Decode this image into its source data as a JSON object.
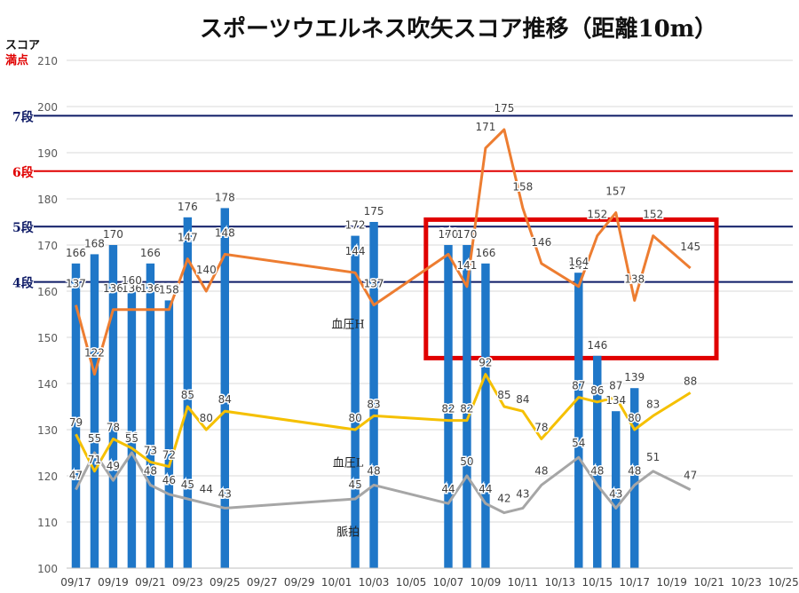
{
  "title": "スポーツウエルネス吹矢スコア推移（距離10m）",
  "chart_data": {
    "type": "bar",
    "title": "スポーツウエルネス吹矢スコア推移（距離10m）",
    "ylabel": "スコア",
    "ylabel_sub": "満点",
    "ylim": [
      100,
      210
    ],
    "ytick_step": 10,
    "grid": true,
    "x_ticks": [
      "09/17",
      "09/19",
      "09/21",
      "09/23",
      "09/25",
      "09/27",
      "09/29",
      "10/01",
      "10/03",
      "10/05",
      "10/07",
      "10/09",
      "10/11",
      "10/13",
      "10/15",
      "10/17",
      "10/19",
      "10/21",
      "10/23",
      "10/25"
    ],
    "ref_lines": [
      {
        "label": "7段",
        "value": 198,
        "color": "#0d1a66"
      },
      {
        "label": "6段",
        "value": 186,
        "color": "#e00000"
      },
      {
        "label": "5段",
        "value": 174,
        "color": "#0d1a66"
      },
      {
        "label": "4段",
        "value": 162,
        "color": "#0d1a66"
      }
    ],
    "colors": {
      "score": "#1f77c8",
      "bp_high": "#ed7d31",
      "bp_low": "#f5c000",
      "pulse": "#a6a6a6",
      "highlight": "#e00000"
    },
    "series": [
      {
        "name": "",
        "kind": "bar",
        "label_position": "top",
        "points": [
          [
            "09/17",
            166
          ],
          [
            "09/18",
            168
          ],
          [
            "09/19",
            170
          ],
          [
            "09/20",
            160
          ],
          [
            "09/21",
            166
          ],
          [
            "09/22",
            158
          ],
          [
            "09/23",
            176
          ],
          [
            "09/25",
            178
          ],
          [
            "10/02",
            172
          ],
          [
            "10/03",
            175
          ],
          [
            "10/07",
            170
          ],
          [
            "10/08",
            170
          ],
          [
            "10/09",
            166
          ],
          [
            "10/14",
            164
          ],
          [
            "10/15",
            146
          ],
          [
            "10/16",
            134
          ],
          [
            "10/17",
            139
          ]
        ]
      },
      {
        "name": "血圧H",
        "kind": "line",
        "points": [
          [
            "09/17",
            137
          ],
          [
            "09/18",
            122
          ],
          [
            "09/19",
            136
          ],
          [
            "09/20",
            136
          ],
          [
            "09/21",
            136
          ],
          [
            "09/22",
            136
          ],
          [
            "09/23",
            147
          ],
          [
            "09/24",
            140
          ],
          [
            "09/25",
            148
          ],
          [
            "10/02",
            144
          ],
          [
            "10/03",
            137
          ],
          [
            "10/07",
            148
          ],
          [
            "10/08",
            141
          ],
          [
            "10/09",
            171
          ],
          [
            "10/10",
            175
          ],
          [
            "10/11",
            158
          ],
          [
            "10/12",
            146
          ],
          [
            "10/14",
            141
          ],
          [
            "10/15",
            152
          ],
          [
            "10/16",
            157
          ],
          [
            "10/17",
            138
          ],
          [
            "10/18",
            152
          ],
          [
            "10/20",
            145
          ]
        ]
      },
      {
        "name": "血圧L",
        "kind": "line",
        "points": [
          [
            "09/17",
            79
          ],
          [
            "09/18",
            71
          ],
          [
            "09/19",
            78
          ],
          [
            "09/20",
            76
          ],
          [
            "09/21",
            73
          ],
          [
            "09/22",
            72
          ],
          [
            "09/23",
            85
          ],
          [
            "09/24",
            80
          ],
          [
            "09/25",
            84
          ],
          [
            "10/02",
            80
          ],
          [
            "10/03",
            83
          ],
          [
            "10/07",
            82
          ],
          [
            "10/08",
            82
          ],
          [
            "10/09",
            92
          ],
          [
            "10/10",
            85
          ],
          [
            "10/11",
            84
          ],
          [
            "10/12",
            78
          ],
          [
            "10/14",
            87
          ],
          [
            "10/15",
            86
          ],
          [
            "10/16",
            87
          ],
          [
            "10/17",
            80
          ],
          [
            "10/18",
            83
          ],
          [
            "10/20",
            88
          ]
        ]
      },
      {
        "name": "脈拍",
        "kind": "line",
        "points": [
          [
            "09/17",
            47
          ],
          [
            "09/18",
            55
          ],
          [
            "09/19",
            49
          ],
          [
            "09/20",
            55
          ],
          [
            "09/21",
            48
          ],
          [
            "09/22",
            46
          ],
          [
            "09/23",
            45
          ],
          [
            "09/24",
            44
          ],
          [
            "09/25",
            43
          ],
          [
            "10/02",
            45
          ],
          [
            "10/03",
            48
          ],
          [
            "10/07",
            44
          ],
          [
            "10/08",
            50
          ],
          [
            "10/09",
            44
          ],
          [
            "10/10",
            42
          ],
          [
            "10/11",
            43
          ],
          [
            "10/12",
            48
          ],
          [
            "10/14",
            54
          ],
          [
            "10/15",
            48
          ],
          [
            "10/16",
            43
          ],
          [
            "10/17",
            48
          ],
          [
            "10/18",
            51
          ],
          [
            "10/20",
            47
          ]
        ]
      }
    ]
  }
}
